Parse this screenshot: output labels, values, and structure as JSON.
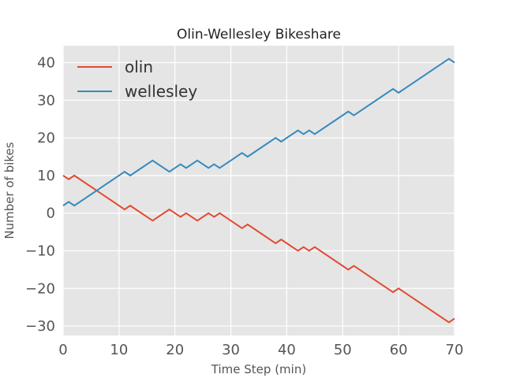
{
  "chart_data": {
    "type": "line",
    "title": "Olin-Wellesley Bikeshare",
    "xlabel": "Time Step (min)",
    "ylabel": "Number of bikes",
    "xlim": [
      0,
      70
    ],
    "ylim": [
      -32.5,
      44.5
    ],
    "xticks": [
      0,
      10,
      20,
      30,
      40,
      50,
      60,
      70
    ],
    "yticks": [
      -30,
      -20,
      -10,
      0,
      10,
      20,
      30,
      40
    ],
    "xtick_labels": [
      "0",
      "10",
      "20",
      "30",
      "40",
      "50",
      "60",
      "70"
    ],
    "ytick_labels": [
      "−30",
      "−20",
      "−10",
      "0",
      "10",
      "20",
      "30",
      "40"
    ],
    "grid": true,
    "legend_position": "top-left",
    "background_color": "#e5e5e5",
    "grid_color": "#ffffff",
    "series": [
      {
        "name": "olin",
        "color": "#e24a33",
        "points": [
          [
            0,
            10
          ],
          [
            1,
            9
          ],
          [
            2,
            10
          ],
          [
            11,
            1
          ],
          [
            12,
            2
          ],
          [
            16,
            -2
          ],
          [
            19,
            1
          ],
          [
            21,
            -1
          ],
          [
            22,
            0
          ],
          [
            24,
            -2
          ],
          [
            26,
            0
          ],
          [
            27,
            -1
          ],
          [
            28,
            0
          ],
          [
            32,
            -4
          ],
          [
            33,
            -3
          ],
          [
            38,
            -8
          ],
          [
            39,
            -7
          ],
          [
            42,
            -10
          ],
          [
            43,
            -9
          ],
          [
            44,
            -10
          ],
          [
            45,
            -9
          ],
          [
            51,
            -15
          ],
          [
            52,
            -14
          ],
          [
            59,
            -21
          ],
          [
            60,
            -20
          ],
          [
            69,
            -29
          ],
          [
            70,
            -28
          ]
        ]
      },
      {
        "name": "wellesley",
        "color": "#348abd",
        "points": [
          [
            0,
            2
          ],
          [
            1,
            3
          ],
          [
            2,
            2
          ],
          [
            11,
            11
          ],
          [
            12,
            10
          ],
          [
            16,
            14
          ],
          [
            19,
            11
          ],
          [
            21,
            13
          ],
          [
            22,
            12
          ],
          [
            24,
            14
          ],
          [
            26,
            12
          ],
          [
            27,
            13
          ],
          [
            28,
            12
          ],
          [
            32,
            16
          ],
          [
            33,
            15
          ],
          [
            38,
            20
          ],
          [
            39,
            19
          ],
          [
            42,
            22
          ],
          [
            43,
            21
          ],
          [
            44,
            22
          ],
          [
            45,
            21
          ],
          [
            51,
            27
          ],
          [
            52,
            26
          ],
          [
            59,
            33
          ],
          [
            60,
            32
          ],
          [
            69,
            41
          ],
          [
            70,
            40
          ]
        ]
      }
    ]
  }
}
